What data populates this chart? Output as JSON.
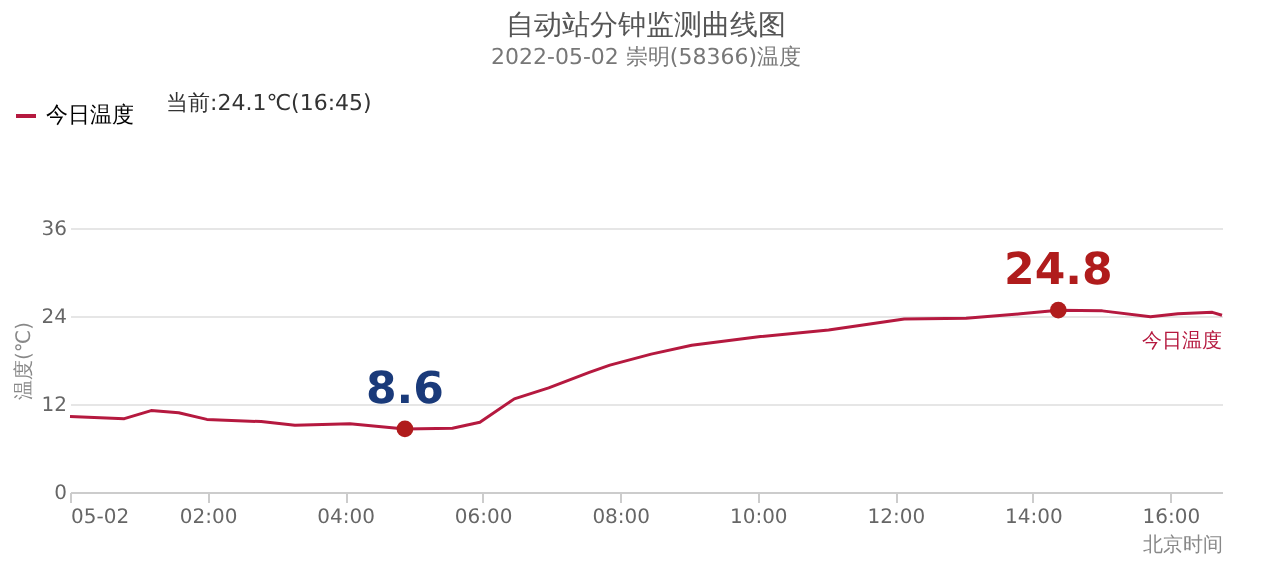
{
  "chart_data": {
    "type": "line",
    "title": "自动站分钟监测曲线图",
    "subtitle": "2022-05-02 崇明(58366)温度",
    "xlabel": "北京时间",
    "ylabel": "温度(℃)",
    "x": [
      0,
      0.79,
      1.18,
      1.58,
      1.99,
      2.78,
      3.27,
      4.07,
      4.87,
      5.56,
      5.96,
      6.46,
      6.96,
      7.55,
      7.85,
      8.45,
      9.04,
      10.04,
      11.03,
      12.13,
      13.03,
      13.82,
      14.37,
      15.01,
      15.71,
      16.11,
      16.61,
      16.75
    ],
    "series": [
      {
        "name": "今日温度",
        "color": "#b5193f",
        "values": [
          10.3,
          10.0,
          11.1,
          10.8,
          9.9,
          9.6,
          9.1,
          9.3,
          8.6,
          8.7,
          9.5,
          12.7,
          14.2,
          16.3,
          17.3,
          18.8,
          20.0,
          21.2,
          22.1,
          23.6,
          23.7,
          24.3,
          24.8,
          24.7,
          23.9,
          24.3,
          24.5,
          24.1
        ]
      }
    ],
    "annotations": [
      "当前:24.1℃(16:45)",
      {
        "text": "8.6",
        "x": 4.87,
        "y": 8.6
      },
      {
        "text": "24.8",
        "x": 14.37,
        "y": 24.8
      }
    ],
    "xlim": [
      0,
      16.75
    ],
    "xticks": [
      {
        "value": 0,
        "label": "05-02"
      },
      {
        "value": 2,
        "label": "02:00"
      },
      {
        "value": 4,
        "label": "04:00"
      },
      {
        "value": 6,
        "label": "06:00"
      },
      {
        "value": 8,
        "label": "08:00"
      },
      {
        "value": 10,
        "label": "10:00"
      },
      {
        "value": 12,
        "label": "12:00"
      },
      {
        "value": 14,
        "label": "14:00"
      },
      {
        "value": 16,
        "label": "16:00"
      }
    ],
    "ylim": [
      0,
      36
    ],
    "yticks": [
      0,
      12,
      24,
      36
    ],
    "grid": "y",
    "legend": "top left",
    "marker": "none",
    "line_style": "solid"
  }
}
